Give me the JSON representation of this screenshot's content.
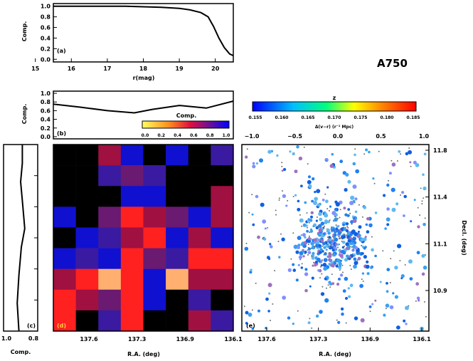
{
  "cluster_name": "A750",
  "colors": {
    "grid_scale": [
      "#000000",
      "#1010d0",
      "#3a1aa0",
      "#6a1a70",
      "#a01040",
      "#ff2020",
      "#ffb070"
    ],
    "points_scale": [
      "#0000ff",
      "#00c0ff",
      "#00ff80",
      "#ffff00",
      "#ff8000",
      "#ff0000"
    ]
  },
  "chart_data": [
    {
      "panel": "top completeness vs magnitude",
      "type": "line",
      "ylabel": "Comp.",
      "xlabel": "r(mag)",
      "xlim": [
        15.5,
        20.5
      ],
      "ylim": [
        -0.05,
        1.05
      ],
      "x_ticks": [
        "15",
        "16",
        "17",
        "18",
        "19",
        "20"
      ],
      "y_ticks": [
        "0.0",
        "0.2",
        "0.4",
        "0.6",
        "0.8",
        "1.0"
      ],
      "panel_label": "(a)",
      "x": [
        15.5,
        16,
        16.5,
        17,
        17.5,
        18,
        18.5,
        19,
        19.3,
        19.6,
        19.8,
        19.95,
        20.1,
        20.25,
        20.4,
        20.5
      ],
      "y": [
        1.0,
        1.0,
        1.0,
        1.0,
        1.0,
        0.99,
        0.98,
        0.96,
        0.93,
        0.88,
        0.8,
        0.62,
        0.4,
        0.22,
        0.1,
        0.07
      ]
    },
    {
      "panel": "completeness vs R.A.",
      "type": "line",
      "ylabel": "Comp.",
      "xlim": [
        0,
        1
      ],
      "ylim": [
        -0.05,
        1.05
      ],
      "y_ticks": [
        "0.0",
        "0.2",
        "0.4",
        "0.6",
        "0.8",
        "1.0"
      ],
      "panel_label": "(b)",
      "x": [
        0,
        0.15,
        0.3,
        0.45,
        0.55,
        0.7,
        0.85,
        1.0
      ],
      "y": [
        0.75,
        0.68,
        0.6,
        0.55,
        0.63,
        0.72,
        0.66,
        0.82
      ]
    },
    {
      "panel": "completeness vs Dec.",
      "type": "line",
      "xlabel": "Comp.",
      "x_ticks": [
        "1.0",
        "0.8"
      ],
      "panel_label": "(c)",
      "y": [
        0,
        0.1,
        0.2,
        0.3,
        0.45,
        0.55,
        0.7,
        0.85,
        1.0
      ],
      "x": [
        0.55,
        0.55,
        0.5,
        0.55,
        0.62,
        0.52,
        0.45,
        0.4,
        0.45
      ]
    },
    {
      "panel": "completeness grid map",
      "type": "heatmap",
      "xlabel": "R.A. (deg)",
      "x_ticks": [
        "137.6",
        "137.3",
        "136.9",
        "136.1"
      ],
      "colorbar_label": "Comp.",
      "colorbar_ticks": [
        "0.0",
        "0.2",
        "0.4",
        "0.6",
        "0.8",
        "1.0"
      ],
      "panel_label": "(d)",
      "values": [
        [
          0,
          0,
          4,
          1,
          0,
          1,
          0,
          2
        ],
        [
          0,
          0,
          2,
          3,
          2,
          0,
          0,
          0
        ],
        [
          0,
          0,
          0,
          1,
          1,
          0,
          0,
          4
        ],
        [
          1,
          0,
          3,
          5,
          4,
          3,
          1,
          4
        ],
        [
          0,
          1,
          2,
          4,
          5,
          1,
          4,
          1
        ],
        [
          1,
          2,
          1,
          5,
          3,
          2,
          5,
          5
        ],
        [
          4,
          5,
          6,
          5,
          1,
          6,
          4,
          4
        ],
        [
          5,
          4,
          3,
          5,
          1,
          0,
          2,
          0
        ],
        [
          5,
          0,
          2,
          5,
          0,
          0,
          4,
          2
        ]
      ]
    },
    {
      "panel": "spatial galaxy distribution",
      "type": "scatter",
      "xlabel": "R.A. (deg)",
      "ylabel": "Decl. (deg)",
      "x_ticks": [
        "137.6",
        "137.3",
        "136.9",
        "136.1"
      ],
      "y_ticks": [
        "11.8",
        "11.4",
        "11.1",
        "10.9"
      ],
      "top_axis_label": "Δ(v−r) (r⁻¹ Mpc)",
      "top_ticks": [
        "−1.0",
        "−0.5",
        "0.0",
        "0.5",
        "1.0"
      ],
      "colorbar_label": "z",
      "colorbar_ticks": [
        "0.155",
        "0.160",
        "0.165",
        "0.170",
        "0.175",
        "0.180",
        "0.185"
      ],
      "panel_label": "(e)",
      "n_points": 700,
      "center": [
        0.48,
        0.52
      ]
    }
  ]
}
